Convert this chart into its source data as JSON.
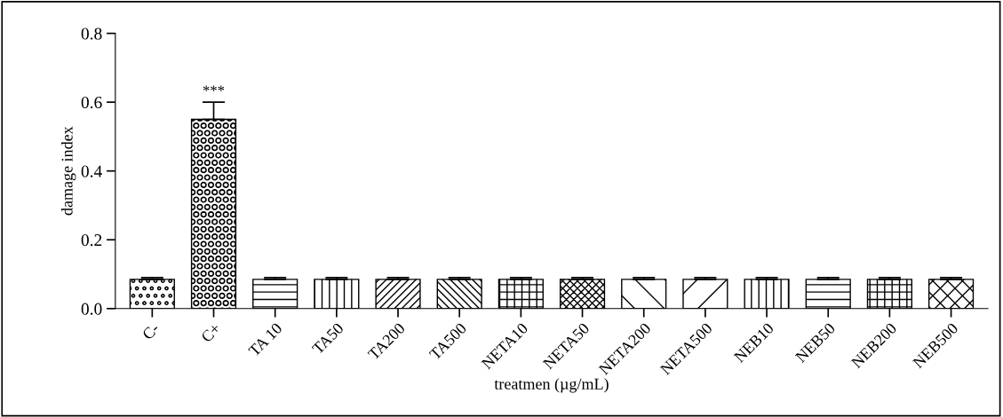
{
  "chart_data": {
    "type": "bar",
    "xlabel": "treatmen (µg/mL)",
    "ylabel": "damage index",
    "categories": [
      "C-",
      "C+",
      "TA 10",
      "TA50",
      "TA200",
      "TA500",
      "NETA10",
      "NETA50",
      "NETA200",
      "NETA500",
      "NEB10",
      "NEB50",
      "NEB200",
      "NEB500"
    ],
    "values": [
      0.085,
      0.55,
      0.085,
      0.085,
      0.085,
      0.085,
      0.085,
      0.085,
      0.085,
      0.085,
      0.085,
      0.085,
      0.085,
      0.085
    ],
    "errors": [
      0.005,
      0.05,
      0.005,
      0.005,
      0.005,
      0.005,
      0.005,
      0.005,
      0.005,
      0.005,
      0.005,
      0.005,
      0.005,
      0.005
    ],
    "ylim": [
      0,
      0.8
    ],
    "yticks": [
      {
        "value": 0,
        "label": "0.0"
      },
      {
        "value": 0.2,
        "label": "0.2"
      },
      {
        "value": 0.4,
        "label": "0.4"
      },
      {
        "value": 0.6,
        "label": "0.6"
      },
      {
        "value": 0.8,
        "label": "0.8"
      }
    ],
    "annotations": [
      {
        "text": "***",
        "x": "C+",
        "y": 0.6
      }
    ],
    "grid": false,
    "legend": false
  }
}
